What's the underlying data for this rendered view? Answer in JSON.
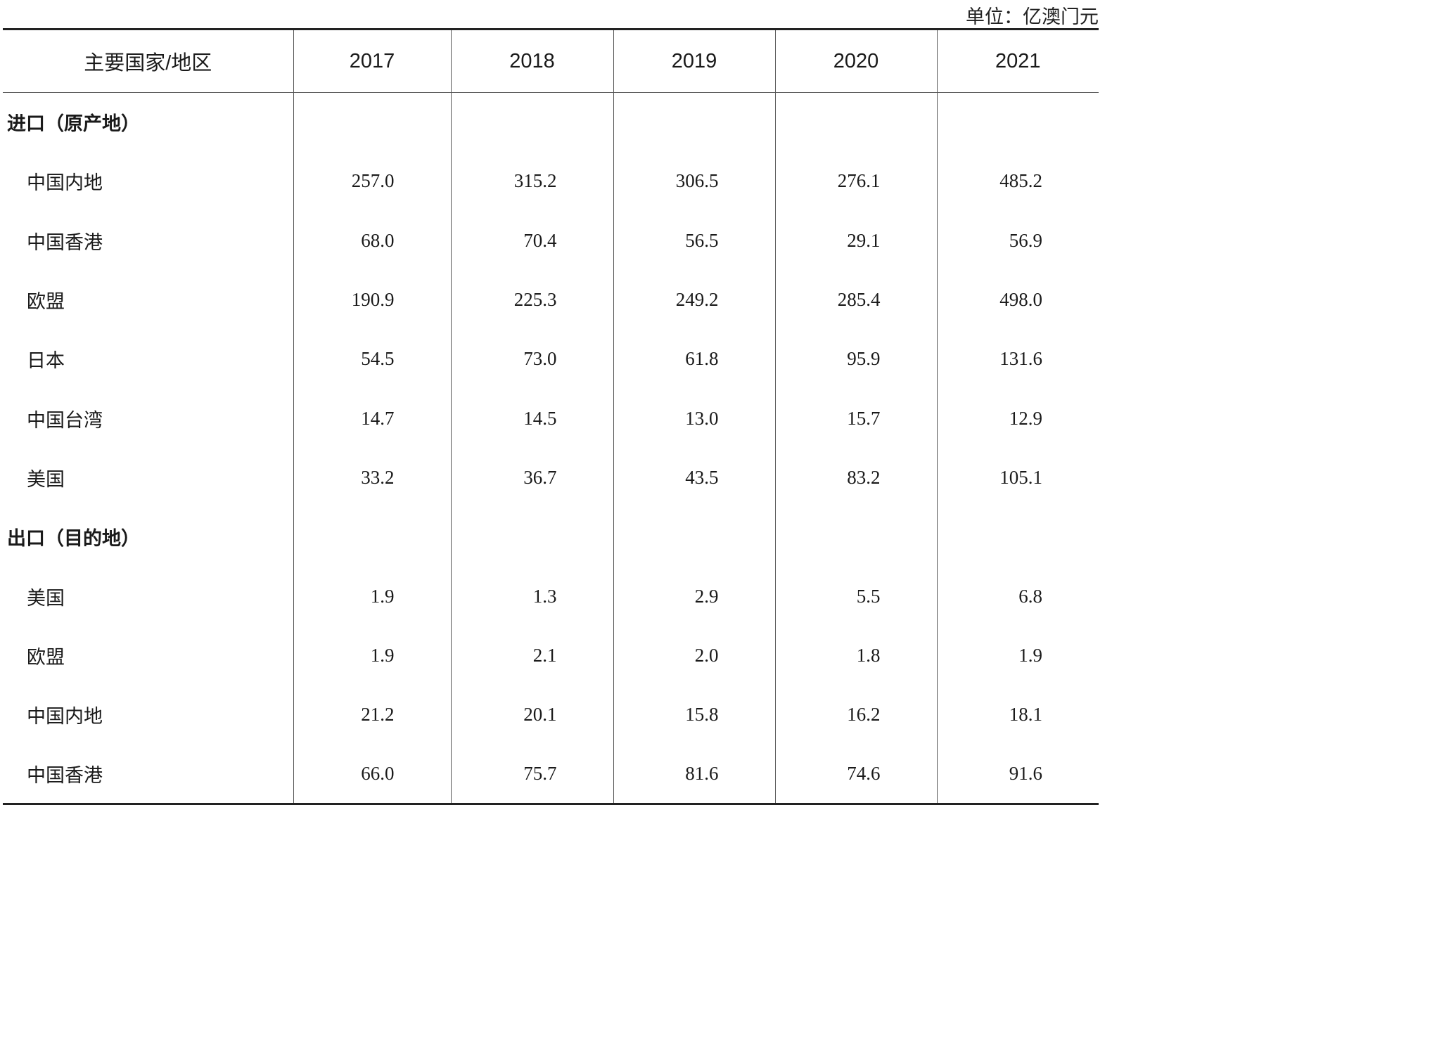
{
  "unit_label": "单位：亿澳门元",
  "header": {
    "first_col": "主要国家/地区",
    "years": [
      "2017",
      "2018",
      "2019",
      "2020",
      "2021"
    ]
  },
  "sections": [
    {
      "label": "进口（原产地）",
      "rows": [
        {
          "name": "中国内地",
          "values": [
            "257.0",
            "315.2",
            "306.5",
            "276.1",
            "485.2"
          ]
        },
        {
          "name": "中国香港",
          "values": [
            "68.0",
            "70.4",
            "56.5",
            "29.1",
            "56.9"
          ]
        },
        {
          "name": "欧盟",
          "values": [
            "190.9",
            "225.3",
            "249.2",
            "285.4",
            "498.0"
          ]
        },
        {
          "name": "日本",
          "values": [
            "54.5",
            "73.0",
            "61.8",
            "95.9",
            "131.6"
          ]
        },
        {
          "name": "中国台湾",
          "values": [
            "14.7",
            "14.5",
            "13.0",
            "15.7",
            "12.9"
          ]
        },
        {
          "name": "美国",
          "values": [
            "33.2",
            "36.7",
            "43.5",
            "83.2",
            "105.1"
          ]
        }
      ]
    },
    {
      "label": "出口（目的地）",
      "rows": [
        {
          "name": "美国",
          "values": [
            "1.9",
            "1.3",
            "2.9",
            "5.5",
            "6.8"
          ]
        },
        {
          "name": "欧盟",
          "values": [
            "1.9",
            "2.1",
            "2.0",
            "1.8",
            "1.9"
          ]
        },
        {
          "name": "中国内地",
          "values": [
            "21.2",
            "20.1",
            "15.8",
            "16.2",
            "18.1"
          ]
        },
        {
          "name": "中国香港",
          "values": [
            "66.0",
            "75.7",
            "81.6",
            "74.6",
            "91.6"
          ]
        }
      ]
    }
  ]
}
